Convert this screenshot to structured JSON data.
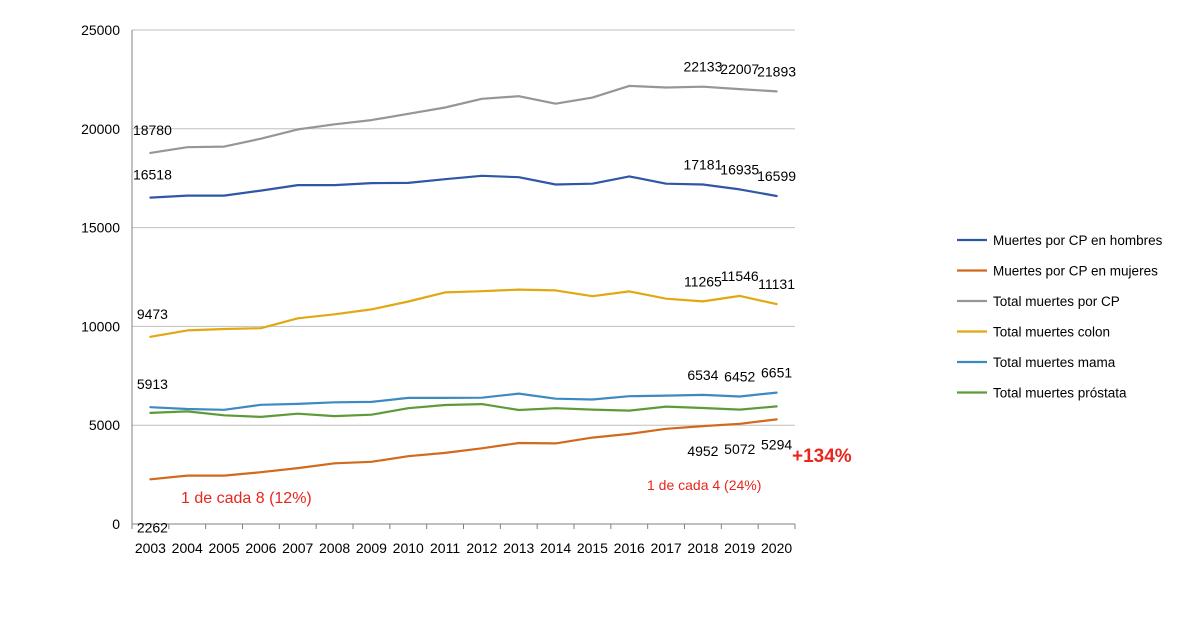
{
  "chart_data": {
    "type": "line",
    "title": "",
    "xlabel": "",
    "ylabel": "",
    "x": [
      "2003",
      "2004",
      "2005",
      "2006",
      "2007",
      "2008",
      "2009",
      "2010",
      "2011",
      "2012",
      "2013",
      "2014",
      "2015",
      "2016",
      "2017",
      "2018",
      "2019",
      "2020"
    ],
    "ylim": [
      0,
      25000
    ],
    "yticks": [
      "0",
      "5000",
      "10000",
      "15000",
      "20000",
      "25000"
    ],
    "grid": "horizontal",
    "legend_position": "right",
    "series": [
      {
        "name": "Muertes por CP en hombres",
        "color": "#2e57a6",
        "values": [
          16518,
          16620,
          16620,
          16870,
          17150,
          17150,
          17250,
          17260,
          17450,
          17620,
          17550,
          17180,
          17220,
          17590,
          17220,
          17181,
          16935,
          16599
        ],
        "labels": [
          {
            "i": 0,
            "text": "16518"
          },
          {
            "i": 15,
            "text": "17181"
          },
          {
            "i": 16,
            "text": "16935"
          },
          {
            "i": 17,
            "text": "16599"
          }
        ]
      },
      {
        "name": "Muertes por CP en mujeres",
        "color": "#d2691e",
        "values": [
          2262,
          2450,
          2450,
          2620,
          2830,
          3070,
          3150,
          3430,
          3600,
          3830,
          4100,
          4080,
          4370,
          4560,
          4820,
          4952,
          5072,
          5294
        ],
        "labels": [
          {
            "i": 0,
            "text": "2262"
          },
          {
            "i": 15,
            "text": "4952"
          },
          {
            "i": 16,
            "text": "5072"
          },
          {
            "i": 17,
            "text": "5294"
          }
        ]
      },
      {
        "name": "Total muertes por CP",
        "color": "#969696",
        "values": [
          18780,
          19070,
          19100,
          19500,
          19970,
          20230,
          20440,
          20760,
          21080,
          21520,
          21650,
          21270,
          21580,
          22170,
          22090,
          22133,
          22007,
          21893
        ],
        "labels": [
          {
            "i": 0,
            "text": "18780"
          },
          {
            "i": 15,
            "text": "22133"
          },
          {
            "i": 16,
            "text": "22007"
          },
          {
            "i": 17,
            "text": "21893"
          }
        ]
      },
      {
        "name": "Total muertes colon",
        "color": "#e2a812",
        "values": [
          9473,
          9800,
          9870,
          9910,
          10410,
          10610,
          10860,
          11260,
          11720,
          11780,
          11860,
          11820,
          11530,
          11770,
          11400,
          11265,
          11546,
          11131
        ],
        "labels": [
          {
            "i": 0,
            "text": "9473"
          },
          {
            "i": 15,
            "text": "11265"
          },
          {
            "i": 16,
            "text": "11546"
          },
          {
            "i": 17,
            "text": "11131"
          }
        ]
      },
      {
        "name": "Total muertes mama",
        "color": "#3d8ac2",
        "values": [
          5913,
          5820,
          5780,
          6030,
          6080,
          6160,
          6180,
          6380,
          6380,
          6390,
          6600,
          6340,
          6300,
          6470,
          6500,
          6534,
          6452,
          6651
        ],
        "labels": [
          {
            "i": 0,
            "text": "5913"
          },
          {
            "i": 15,
            "text": "6534"
          },
          {
            "i": 16,
            "text": "6452"
          },
          {
            "i": 17,
            "text": "6651"
          }
        ]
      },
      {
        "name": "Total muertes próstata",
        "color": "#5e9a3a",
        "values": [
          5620,
          5700,
          5500,
          5420,
          5580,
          5460,
          5530,
          5860,
          6020,
          6070,
          5770,
          5860,
          5790,
          5740,
          5940,
          5870,
          5790,
          5950
        ],
        "labels": []
      }
    ],
    "annotations": {
      "left_note": "1 de cada 8 (12%)",
      "right_note": "1 de cada 4 (24%)",
      "growth": "+134%"
    }
  }
}
